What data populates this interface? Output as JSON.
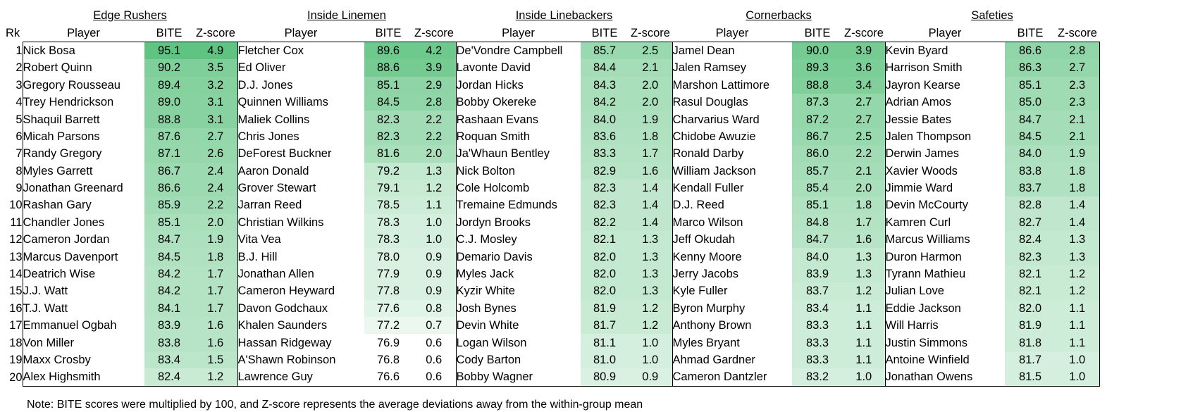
{
  "headers": {
    "rank": "Rk",
    "player": "Player",
    "bite": "BITE",
    "z": "Z-score"
  },
  "colors": {
    "heat_low": "#ffffff",
    "heat_high": "#5fc381"
  },
  "ranks": [
    "1",
    "2",
    "3",
    "4",
    "5",
    "6",
    "7",
    "8",
    "9",
    "10",
    "11",
    "12",
    "13",
    "14",
    "15",
    "16",
    "17",
    "18",
    "19",
    "20"
  ],
  "groups": [
    {
      "title": "Edge Rushers",
      "players": [
        "Nick Bosa",
        "Robert Quinn",
        "Gregory Rousseau",
        "Trey Hendrickson",
        "Shaquil Barrett",
        "Micah Parsons",
        "Randy Gregory",
        "Myles Garrett",
        "Jonathan Greenard",
        "Rashan Gary",
        "Chandler Jones",
        "Cameron Jordan",
        "Marcus Davenport",
        "Deatrich Wise",
        "J.J. Watt",
        "T.J. Watt",
        "Emmanuel Ogbah",
        "Von Miller",
        "Maxx Crosby",
        "Alex Highsmith"
      ],
      "bite": [
        "95.1",
        "90.2",
        "89.4",
        "89.0",
        "88.8",
        "87.6",
        "87.1",
        "86.7",
        "86.6",
        "85.9",
        "85.1",
        "84.7",
        "84.5",
        "84.2",
        "84.2",
        "84.1",
        "83.9",
        "83.8",
        "83.4",
        "82.4"
      ],
      "z": [
        "4.9",
        "3.5",
        "3.2",
        "3.1",
        "3.1",
        "2.7",
        "2.6",
        "2.4",
        "2.4",
        "2.2",
        "2.0",
        "1.9",
        "1.8",
        "1.7",
        "1.7",
        "1.7",
        "1.6",
        "1.6",
        "1.5",
        "1.2"
      ]
    },
    {
      "title": "Inside Linemen",
      "players": [
        "Fletcher Cox",
        "Ed Oliver",
        "D.J. Jones",
        "Quinnen Williams",
        "Maliek Collins",
        "Chris Jones",
        "DeForest Buckner",
        "Aaron Donald",
        "Grover Stewart",
        "Jarran Reed",
        "Christian Wilkins",
        "Vita Vea",
        "B.J. Hill",
        "Jonathan Allen",
        "Cameron Heyward",
        "Davon Godchaux",
        "Khalen Saunders",
        "Hassan Ridgeway",
        "A'Shawn Robinson",
        "Lawrence Guy"
      ],
      "bite": [
        "89.6",
        "88.6",
        "85.1",
        "84.5",
        "82.3",
        "82.3",
        "81.6",
        "79.2",
        "79.1",
        "78.5",
        "78.3",
        "78.3",
        "78.0",
        "77.9",
        "77.8",
        "77.6",
        "77.2",
        "76.9",
        "76.8",
        "76.6"
      ],
      "z": [
        "4.2",
        "3.9",
        "2.9",
        "2.8",
        "2.2",
        "2.2",
        "2.0",
        "1.3",
        "1.2",
        "1.1",
        "1.0",
        "1.0",
        "0.9",
        "0.9",
        "0.9",
        "0.8",
        "0.7",
        "0.6",
        "0.6",
        "0.6"
      ]
    },
    {
      "title": "Inside Linebackers",
      "players": [
        "De'Vondre Campbell",
        "Lavonte David",
        "Jordan Hicks",
        "Bobby Okereke",
        "Rashaan Evans",
        "Roquan Smith",
        "Ja'Whaun Bentley",
        "Nick Bolton",
        "Cole Holcomb",
        "Tremaine Edmunds",
        "Jordyn Brooks",
        "C.J. Mosley",
        "Demario Davis",
        "Myles Jack",
        "Kyzir White",
        "Josh Bynes",
        "Devin White",
        "Logan Wilson",
        "Cody Barton",
        "Bobby Wagner"
      ],
      "bite": [
        "85.7",
        "84.4",
        "84.3",
        "84.2",
        "84.0",
        "83.6",
        "83.3",
        "82.9",
        "82.3",
        "82.3",
        "82.2",
        "82.1",
        "82.0",
        "82.0",
        "82.0",
        "81.9",
        "81.7",
        "81.1",
        "81.0",
        "80.9"
      ],
      "z": [
        "2.5",
        "2.1",
        "2.0",
        "2.0",
        "1.9",
        "1.8",
        "1.7",
        "1.6",
        "1.4",
        "1.4",
        "1.4",
        "1.3",
        "1.3",
        "1.3",
        "1.3",
        "1.2",
        "1.2",
        "1.0",
        "1.0",
        "0.9"
      ]
    },
    {
      "title": "Cornerbacks",
      "players": [
        "Jamel Dean",
        "Jalen Ramsey",
        "Marshon Lattimore",
        "Rasul Douglas",
        "Charvarius Ward",
        "Chidobe Awuzie",
        "Ronald Darby",
        "William Jackson",
        "Kendall Fuller",
        "D.J. Reed",
        "Marco Wilson",
        "Jeff Okudah",
        "Kenny Moore",
        "Jerry Jacobs",
        "Kyle Fuller",
        "Byron Murphy",
        "Anthony Brown",
        "Myles Bryant",
        "Ahmad Gardner",
        "Cameron Dantzler"
      ],
      "bite": [
        "90.0",
        "89.3",
        "88.8",
        "87.3",
        "87.2",
        "86.7",
        "86.0",
        "85.7",
        "85.4",
        "85.1",
        "84.8",
        "84.7",
        "84.0",
        "83.9",
        "83.7",
        "83.4",
        "83.3",
        "83.3",
        "83.3",
        "83.2"
      ],
      "z": [
        "3.9",
        "3.6",
        "3.4",
        "2.7",
        "2.7",
        "2.5",
        "2.2",
        "2.1",
        "2.0",
        "1.8",
        "1.7",
        "1.6",
        "1.3",
        "1.3",
        "1.2",
        "1.1",
        "1.1",
        "1.1",
        "1.1",
        "1.0"
      ]
    },
    {
      "title": "Safeties",
      "players": [
        "Kevin Byard",
        "Harrison Smith",
        "Jayron Kearse",
        "Adrian Amos",
        "Jessie Bates",
        "Jalen Thompson",
        "Derwin James",
        "Xavier Woods",
        "Jimmie Ward",
        "Devin McCourty",
        "Kamren Curl",
        "Marcus Williams",
        "Duron Harmon",
        "Tyrann Mathieu",
        "Julian Love",
        "Eddie Jackson",
        "Will Harris",
        "Justin Simmons",
        "Antoine Winfield",
        "Jonathan Owens"
      ],
      "bite": [
        "86.6",
        "86.3",
        "85.1",
        "85.0",
        "84.7",
        "84.5",
        "84.0",
        "83.8",
        "83.7",
        "82.8",
        "82.7",
        "82.4",
        "82.3",
        "82.1",
        "82.1",
        "82.0",
        "81.9",
        "81.8",
        "81.7",
        "81.5"
      ],
      "z": [
        "2.8",
        "2.7",
        "2.3",
        "2.3",
        "2.1",
        "2.1",
        "1.9",
        "1.8",
        "1.8",
        "1.4",
        "1.4",
        "1.3",
        "1.3",
        "1.2",
        "1.2",
        "1.1",
        "1.1",
        "1.1",
        "1.0",
        "1.0"
      ]
    }
  ],
  "note": "Note: BITE scores were multiplied by 100, and Z-score represents the average deviations away from the within-group mean"
}
